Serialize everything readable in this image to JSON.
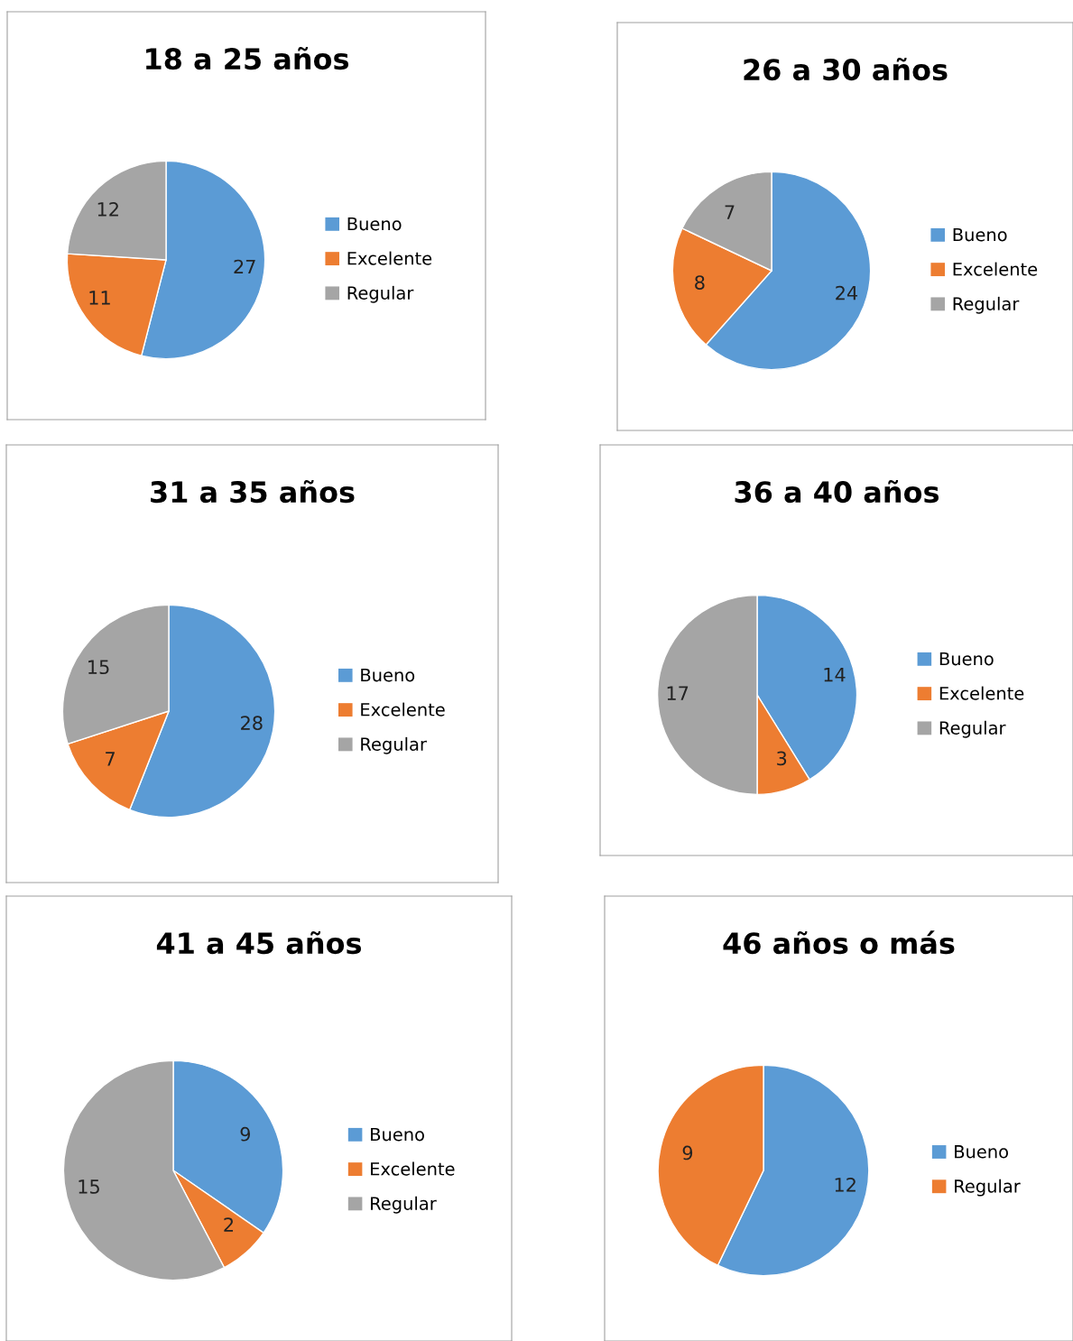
{
  "chart_data": [
    {
      "type": "pie",
      "title": "18 a 25 años",
      "categories": [
        "Bueno",
        "Excelente",
        "Regular"
      ],
      "values": [
        27,
        11,
        12
      ],
      "colors": [
        "#5b9bd5",
        "#ed7d31",
        "#a5a5a5"
      ],
      "data_labels": true,
      "legend": "right"
    },
    {
      "type": "pie",
      "title": "26 a 30 años",
      "categories": [
        "Bueno",
        "Excelente",
        "Regular"
      ],
      "values": [
        24,
        8,
        7
      ],
      "colors": [
        "#5b9bd5",
        "#ed7d31",
        "#a5a5a5"
      ],
      "data_labels": true,
      "legend": "right"
    },
    {
      "type": "pie",
      "title": "31 a 35 años",
      "categories": [
        "Bueno",
        "Excelente",
        "Regular"
      ],
      "values": [
        28,
        7,
        15
      ],
      "colors": [
        "#5b9bd5",
        "#ed7d31",
        "#a5a5a5"
      ],
      "data_labels": true,
      "legend": "right"
    },
    {
      "type": "pie",
      "title": "36 a 40 años",
      "categories": [
        "Bueno",
        "Excelente",
        "Regular"
      ],
      "values": [
        14,
        3,
        17
      ],
      "colors": [
        "#5b9bd5",
        "#ed7d31",
        "#a5a5a5"
      ],
      "data_labels": true,
      "legend": "right"
    },
    {
      "type": "pie",
      "title": "41 a 45 años",
      "categories": [
        "Bueno",
        "Excelente",
        "Regular"
      ],
      "values": [
        9,
        2,
        15
      ],
      "colors": [
        "#5b9bd5",
        "#ed7d31",
        "#a5a5a5"
      ],
      "data_labels": true,
      "legend": "right"
    },
    {
      "type": "pie",
      "title": "46 años o más",
      "categories": [
        "Bueno",
        "Regular"
      ],
      "values": [
        12,
        9
      ],
      "colors": [
        "#5b9bd5",
        "#ed7d31"
      ],
      "data_labels": true,
      "legend": "right"
    }
  ]
}
